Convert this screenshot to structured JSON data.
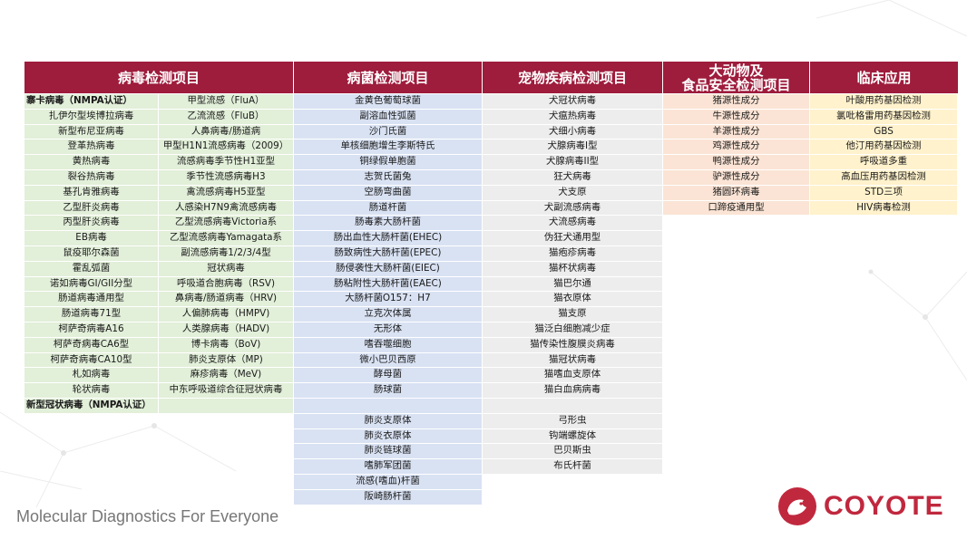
{
  "headers": {
    "virus": "病毒检测项目",
    "bacteria": "病菌检测项目",
    "pet": "宠物疾病检测项目",
    "animal_line1": "大动物及",
    "animal_line2": "食品安全检测项目",
    "clinical": "临床应用"
  },
  "virus_rows": [
    [
      "寨卡病毒（NMPA认证）",
      "甲型流感（FluA）"
    ],
    [
      "扎伊尔型埃博拉病毒",
      "乙流流感（FluB）"
    ],
    [
      "新型布尼亚病毒",
      "人鼻病毒/肠道病"
    ],
    [
      "登革热病毒",
      "甲型H1N1流感病毒（2009）"
    ],
    [
      "黄热病毒",
      "流感病毒季节性H1亚型"
    ],
    [
      "裂谷热病毒",
      "季节性流感病毒H3"
    ],
    [
      "基孔肯雅病毒",
      "禽流感病毒H5亚型"
    ],
    [
      "乙型肝炎病毒",
      "人感染H7N9禽流感病毒"
    ],
    [
      "丙型肝炎病毒",
      "乙型流感病毒Victoria系"
    ],
    [
      "EB病毒",
      "乙型流感病毒Yamagata系"
    ],
    [
      "鼠疫耶尔森菌",
      "副流感病毒1/2/3/4型"
    ],
    [
      "霍乱弧菌",
      "冠状病毒"
    ],
    [
      "诺如病毒GI/GII分型",
      "呼吸道合胞病毒（RSV)"
    ],
    [
      "肠道病毒通用型",
      "鼻病毒/肠道病毒（HRV)"
    ],
    [
      "肠道病毒71型",
      "人偏肺病毒（HMPV)"
    ],
    [
      "柯萨奇病毒A16",
      "人类腺病毒（HADV)"
    ],
    [
      "柯萨奇病毒CA6型",
      "博卡病毒（BoV)"
    ],
    [
      "柯萨奇病毒CA10型",
      "肺炎支原体（MP)"
    ],
    [
      "札如病毒",
      "麻疹病毒（MeV)"
    ],
    [
      "轮状病毒",
      "中东呼吸道综合征冠状病毒"
    ],
    [
      "新型冠状病毒（NMPA认证）",
      ""
    ]
  ],
  "bacteria": [
    "金黄色葡萄球菌",
    "副溶血性弧菌",
    "沙门氏菌",
    "单核细胞增生李斯特氏",
    "铜绿假单胞菌",
    "志贺氏菌兔",
    "空肠弯曲菌",
    "肠道杆菌",
    "肠毒素大肠杆菌",
    "肠出血性大肠杆菌(EHEC)",
    "肠致病性大肠杆菌(EPEC)",
    "肠侵袭性大肠杆菌(EIEC)",
    "肠粘附性大肠杆菌(EAEC)",
    "大肠杆菌O157：H7",
    "立克次体属",
    "无形体",
    "嗜吞噬细胞",
    "微小巴贝西原",
    "酵母菌",
    "肠球菌",
    "",
    "肺炎支原体",
    "肺炎衣原体",
    "肺炎链球菌",
    "嗜肺军团菌",
    "流感(嗜血)杆菌",
    "阪崎肠杆菌"
  ],
  "pet": [
    "犬冠状病毒",
    "犬瘟热病毒",
    "犬细小病毒",
    "犬腺病毒I型",
    "犬腺病毒II型",
    "狂犬病毒",
    "犬支原",
    "犬副流感病毒",
    "犬流感病毒",
    "伪狂犬通用型",
    "猫疱疹病毒",
    "猫杯状病毒",
    "猫巴尔通",
    "猫衣原体",
    "猫支原",
    "猫泛白细胞减少症",
    "猫传染性腹膜炎病毒",
    "猫冠状病毒",
    "猫嗜血支原体",
    "猫白血病病毒",
    "",
    "弓形虫",
    "钩端螺旋体",
    "巴贝斯虫",
    "布氏杆菌"
  ],
  "animal": [
    "猪源性成分",
    "牛源性成分",
    "羊源性成分",
    "鸡源性成分",
    "鸭源性成分",
    "驴源性成分",
    "猪圆环病毒",
    "口蹄疫通用型"
  ],
  "clinical": [
    "叶酸用药基因检测",
    "氯吡格雷用药基因检测",
    "GBS",
    "他汀用药基因检测",
    "呼吸道多重",
    "高血压用药基因检测",
    "STD三项",
    "HIV病毒检测"
  ],
  "footer": {
    "tagline": "Molecular Diagnostics For Everyone"
  },
  "brand": {
    "name": "COYOTE",
    "color": "#c0283e"
  },
  "colors": {
    "header_bg": "#9e1c3c",
    "virus_bg": "#e2efd9",
    "bacteria_bg": "#d9e2f3",
    "pet_bg": "#ededed",
    "animal_bg": "#fbe4d5",
    "clinical_bg": "#fff2cc"
  }
}
